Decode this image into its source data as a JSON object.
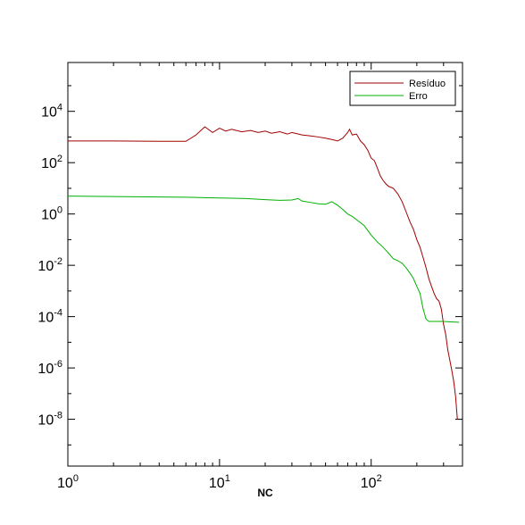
{
  "chart_data": {
    "type": "line",
    "xlabel": "NC",
    "ylabel": "",
    "xscale": "log",
    "yscale": "log",
    "xlim": [
      1,
      400
    ],
    "ylim": [
      1.5e-10,
      800000
    ],
    "grid": false,
    "legend_position": "top-right",
    "x_ticks": [
      {
        "value": 1,
        "base": "10",
        "exp": "0"
      },
      {
        "value": 10,
        "base": "10",
        "exp": "1"
      },
      {
        "value": 100,
        "base": "10",
        "exp": "2"
      }
    ],
    "y_ticks": [
      {
        "value": 1e-08,
        "base": "10",
        "exp": "-8"
      },
      {
        "value": 1e-06,
        "base": "10",
        "exp": "-6"
      },
      {
        "value": 0.0001,
        "base": "10",
        "exp": "-4"
      },
      {
        "value": 0.01,
        "base": "10",
        "exp": "-2"
      },
      {
        "value": 1,
        "base": "10",
        "exp": "0"
      },
      {
        "value": 100,
        "base": "10",
        "exp": "2"
      },
      {
        "value": 10000,
        "base": "10",
        "exp": "4"
      }
    ],
    "series": [
      {
        "name": "Resíduo",
        "color": "#a00000",
        "points": [
          [
            1,
            700
          ],
          [
            2,
            700
          ],
          [
            4,
            680
          ],
          [
            6,
            680
          ],
          [
            7,
            1200
          ],
          [
            8,
            2500
          ],
          [
            9,
            1500
          ],
          [
            10,
            2200
          ],
          [
            11,
            1700
          ],
          [
            12,
            2000
          ],
          [
            14,
            1600
          ],
          [
            16,
            1800
          ],
          [
            18,
            1500
          ],
          [
            20,
            1700
          ],
          [
            22,
            1400
          ],
          [
            25,
            1600
          ],
          [
            28,
            1300
          ],
          [
            30,
            1500
          ],
          [
            35,
            1200
          ],
          [
            40,
            1100
          ],
          [
            45,
            1000
          ],
          [
            50,
            900
          ],
          [
            55,
            800
          ],
          [
            60,
            700
          ],
          [
            65,
            900
          ],
          [
            70,
            1500
          ],
          [
            72,
            2000
          ],
          [
            75,
            1200
          ],
          [
            80,
            1300
          ],
          [
            85,
            700
          ],
          [
            90,
            500
          ],
          [
            95,
            300
          ],
          [
            100,
            150
          ],
          [
            105,
            120
          ],
          [
            110,
            60
          ],
          [
            115,
            30
          ],
          [
            120,
            20
          ],
          [
            125,
            15
          ],
          [
            130,
            12
          ],
          [
            140,
            10
          ],
          [
            150,
            6
          ],
          [
            160,
            3
          ],
          [
            170,
            1.2
          ],
          [
            180,
            0.5
          ],
          [
            190,
            0.25
          ],
          [
            200,
            0.1
          ],
          [
            210,
            0.05
          ],
          [
            220,
            0.02
          ],
          [
            230,
            0.008
          ],
          [
            240,
            0.003
          ],
          [
            250,
            0.0015
          ],
          [
            260,
            0.0008
          ],
          [
            270,
            0.0005
          ],
          [
            280,
            0.0004
          ],
          [
            290,
            0.0002
          ],
          [
            300,
            5e-05
          ],
          [
            310,
            2e-05
          ],
          [
            320,
            5e-06
          ],
          [
            330,
            2e-06
          ],
          [
            340,
            8e-07
          ],
          [
            350,
            3e-07
          ],
          [
            360,
            8e-08
          ],
          [
            370,
            1e-08
          ]
        ]
      },
      {
        "name": "Erro",
        "color": "#00b000",
        "points": [
          [
            1,
            5
          ],
          [
            2,
            4.8
          ],
          [
            4,
            4.6
          ],
          [
            6,
            4.5
          ],
          [
            10,
            4.2
          ],
          [
            15,
            4
          ],
          [
            20,
            3.6
          ],
          [
            25,
            3.4
          ],
          [
            30,
            3.5
          ],
          [
            33,
            4
          ],
          [
            35,
            3.2
          ],
          [
            40,
            2.8
          ],
          [
            45,
            2.5
          ],
          [
            50,
            2.4
          ],
          [
            55,
            3.0
          ],
          [
            60,
            2.2
          ],
          [
            65,
            1.5
          ],
          [
            70,
            1.0
          ],
          [
            75,
            0.8
          ],
          [
            80,
            0.6
          ],
          [
            90,
            0.35
          ],
          [
            100,
            0.15
          ],
          [
            110,
            0.08
          ],
          [
            120,
            0.05
          ],
          [
            130,
            0.03
          ],
          [
            140,
            0.018
          ],
          [
            150,
            0.015
          ],
          [
            160,
            0.012
          ],
          [
            170,
            0.008
          ],
          [
            180,
            0.005
          ],
          [
            190,
            0.003
          ],
          [
            200,
            0.0015
          ],
          [
            210,
            0.0008
          ],
          [
            220,
            0.0002
          ],
          [
            230,
            8e-05
          ],
          [
            240,
            6.5e-05
          ],
          [
            300,
            6.5e-05
          ],
          [
            380,
            6e-05
          ]
        ]
      }
    ]
  }
}
